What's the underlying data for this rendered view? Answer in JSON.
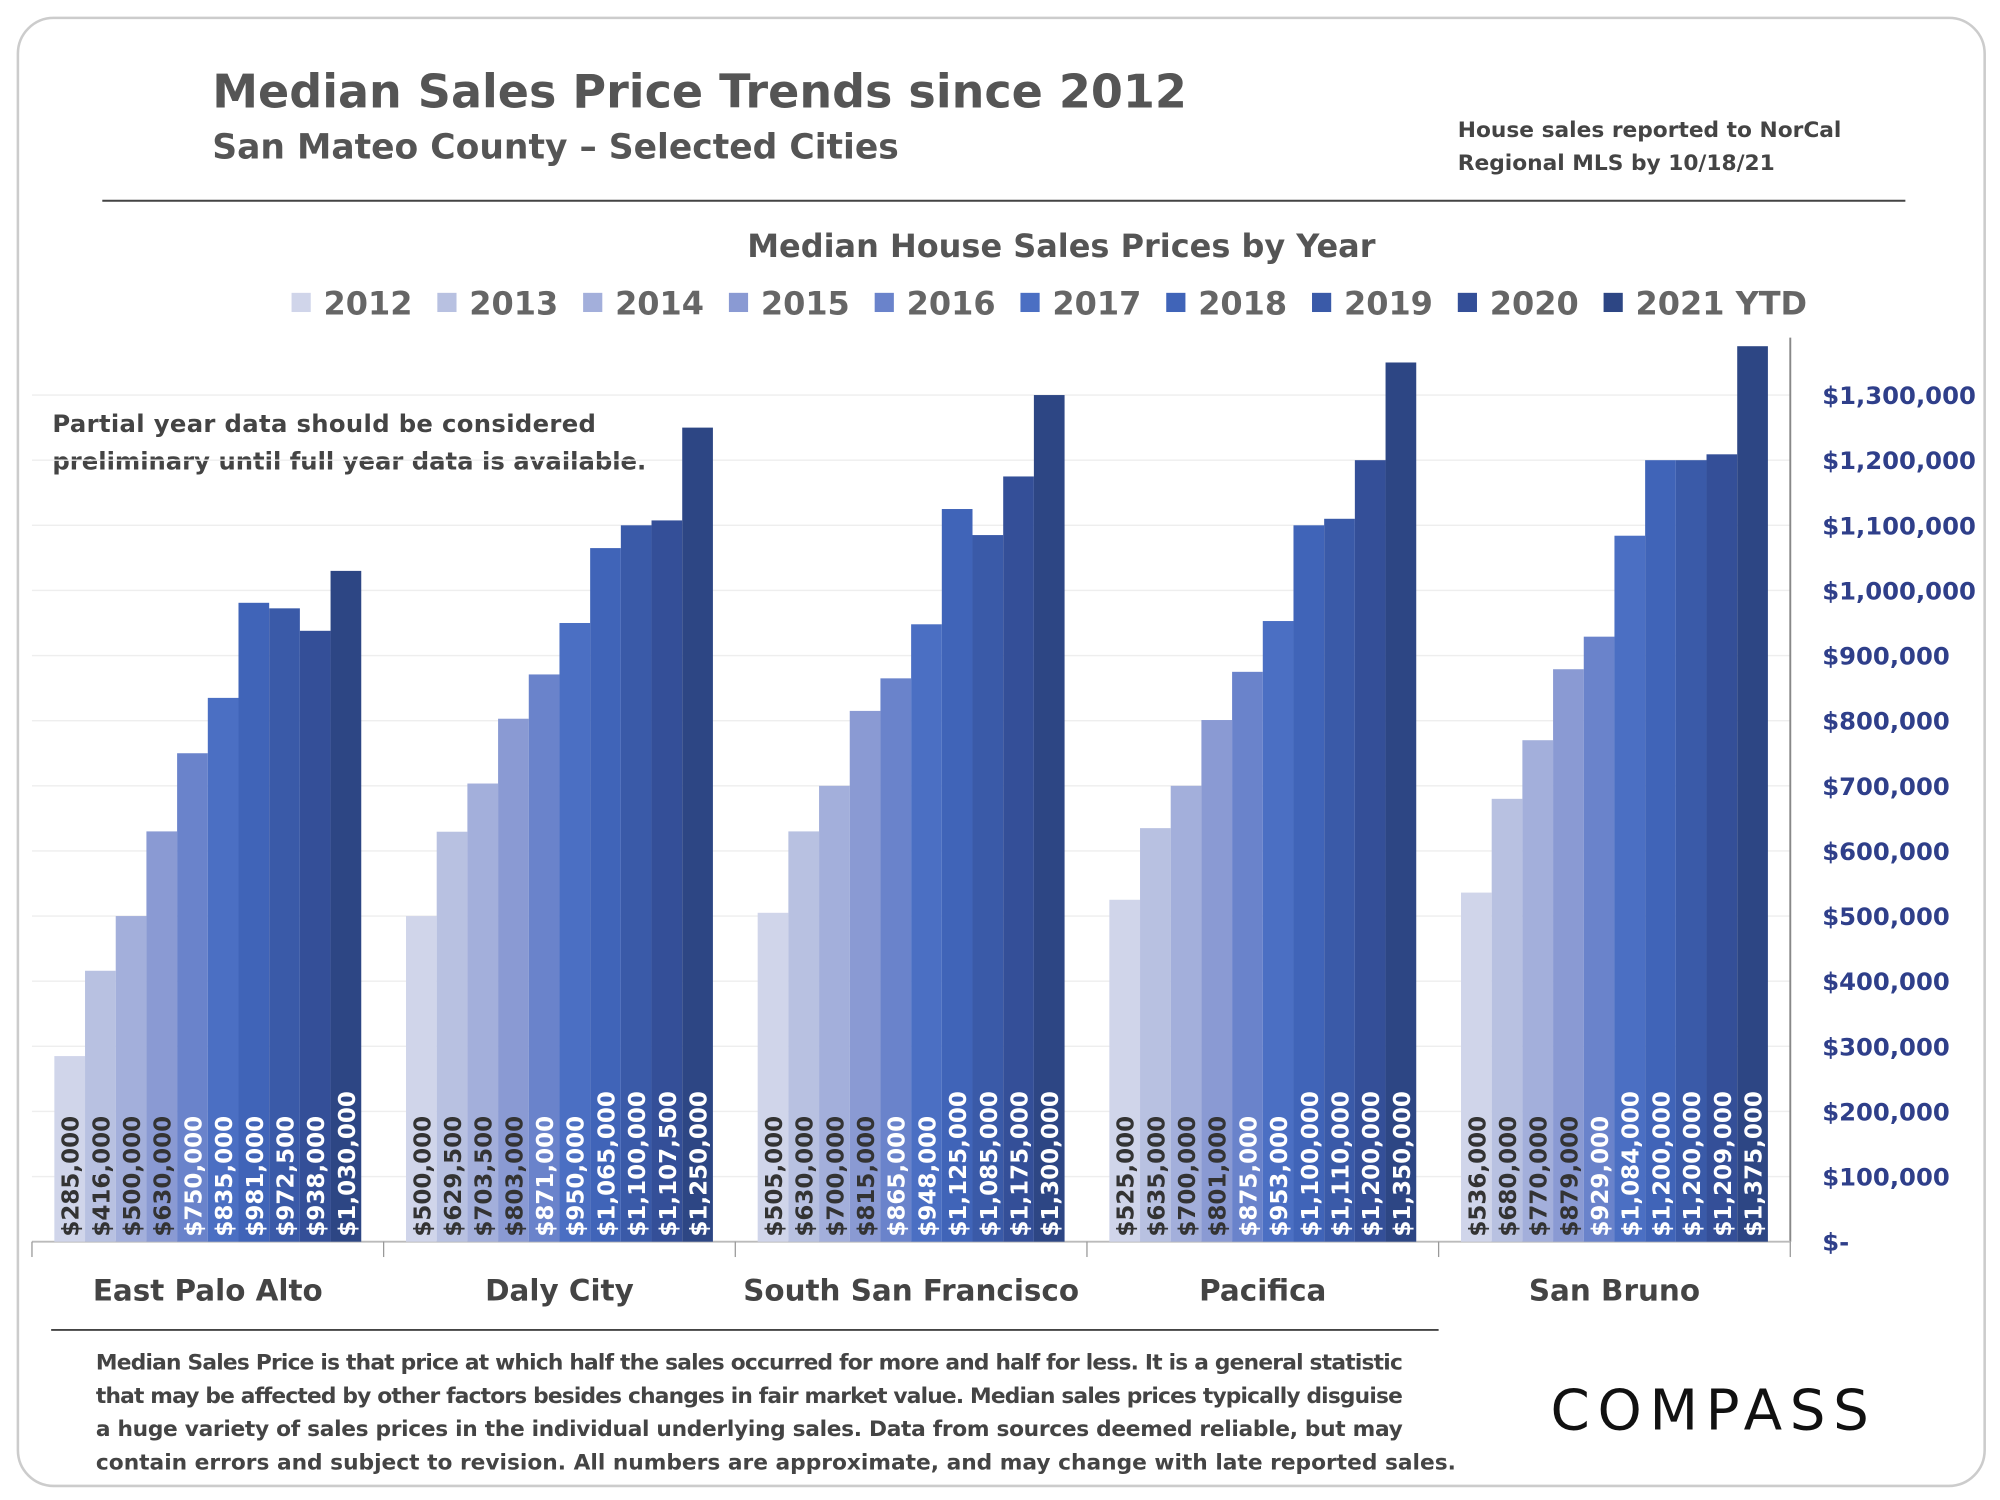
{
  "header": {
    "title": "Median Sales Price Trends since 2012",
    "subtitle": "San Mateo County – Selected Cities",
    "note": [
      "House sales reported to NorCal",
      "Regional MLS by 10/18/21"
    ]
  },
  "chart_data": {
    "type": "bar",
    "title": "Median House Sales Prices by Year",
    "annotation": [
      "Partial year data should be considered",
      "preliminary until full year data is available."
    ],
    "categories": [
      "East Palo Alto",
      "Daly City",
      "South San Francisco",
      "Pacifica",
      "San Bruno"
    ],
    "ylim": [
      0,
      1400000
    ],
    "yticks": [
      {
        "value": 0,
        "label": "$-"
      },
      {
        "value": 100000,
        "label": "$100,000"
      },
      {
        "value": 200000,
        "label": "$200,000"
      },
      {
        "value": 300000,
        "label": "$300,000"
      },
      {
        "value": 400000,
        "label": "$400,000"
      },
      {
        "value": 500000,
        "label": "$500,000"
      },
      {
        "value": 600000,
        "label": "$600,000"
      },
      {
        "value": 700000,
        "label": "$700,000"
      },
      {
        "value": 800000,
        "label": "$800,000"
      },
      {
        "value": 900000,
        "label": "$900,000"
      },
      {
        "value": 1000000,
        "label": "$1,000,000"
      },
      {
        "value": 1100000,
        "label": "$1,100,000"
      },
      {
        "value": 1200000,
        "label": "$1,200,000"
      },
      {
        "value": 1300000,
        "label": "$1,300,000"
      }
    ],
    "grid": true,
    "y_axis_side": "right",
    "series": [
      {
        "name": "2012",
        "color": "#d0d5ea",
        "values": [
          285000,
          500000,
          505000,
          525000,
          536000
        ],
        "value_labels": [
          "$285,000",
          "$500,000",
          "$505,000",
          "$525,000",
          "$536,000"
        ]
      },
      {
        "name": "2013",
        "color": "#b8c1e1",
        "values": [
          416000,
          629500,
          630000,
          635000,
          680000
        ],
        "value_labels": [
          "$416,000",
          "$629,500",
          "$630,000",
          "$635,000",
          "$680,000"
        ]
      },
      {
        "name": "2014",
        "color": "#a3afdb",
        "values": [
          500000,
          703500,
          700000,
          700000,
          770000
        ],
        "value_labels": [
          "$500,000",
          "$703,500",
          "$700,000",
          "$700,000",
          "$770,000"
        ]
      },
      {
        "name": "2015",
        "color": "#8a9ad3",
        "values": [
          630000,
          803000,
          815000,
          801000,
          879000
        ],
        "value_labels": [
          "$630,000",
          "$803,000",
          "$815,000",
          "$801,000",
          "$879,000"
        ]
      },
      {
        "name": "2016",
        "color": "#6a83cb",
        "values": [
          750000,
          871000,
          865000,
          875000,
          929000
        ],
        "value_labels": [
          "$750,000",
          "$871,000",
          "$865,000",
          "$875,000",
          "$929,000"
        ]
      },
      {
        "name": "2017",
        "color": "#4b6fc3",
        "values": [
          835000,
          950000,
          948000,
          953000,
          1084000
        ],
        "value_labels": [
          "$835,000",
          "$950,000",
          "$948,000",
          "$953,000",
          "$1,084,000"
        ]
      },
      {
        "name": "2018",
        "color": "#4064b8",
        "values": [
          981000,
          1065000,
          1125000,
          1100000,
          1200000
        ],
        "value_labels": [
          "$981,000",
          "$1,065,000",
          "$1,125,000",
          "$1,100,000",
          "$1,200,000"
        ]
      },
      {
        "name": "2019",
        "color": "#3a5aa8",
        "values": [
          972500,
          1100000,
          1085000,
          1110000,
          1200000
        ],
        "value_labels": [
          "$972,500",
          "$1,100,000",
          "$1,085,000",
          "$1,110,000",
          "$1,200,000"
        ]
      },
      {
        "name": "2020",
        "color": "#344f98",
        "values": [
          938000,
          1107500,
          1175000,
          1200000,
          1209000
        ],
        "value_labels": [
          "$938,000",
          "$1,107,500",
          "$1,175,000",
          "$1,200,000",
          "$1,209,000"
        ]
      },
      {
        "name": "2021 YTD",
        "color": "#2d4684",
        "values": [
          1030000,
          1250000,
          1300000,
          1350000,
          1375000
        ],
        "value_labels": [
          "$1,030,000",
          "$1,250,000",
          "$1,300,000",
          "$1,350,000",
          "$1,375,000"
        ]
      }
    ]
  },
  "footer": {
    "text": [
      "Median Sales Price is that price at which half the sales occurred for more and half for less. It is a general statistic",
      "that may be affected by other factors besides changes in fair market value. Median sales prices typically disguise",
      "a huge variety of sales prices in the individual underlying sales. Data from sources deemed reliable, but may",
      "contain errors and subject to revision.  All numbers are approximate, and may change with late reported sales."
    ],
    "brand": "COMPASS"
  }
}
